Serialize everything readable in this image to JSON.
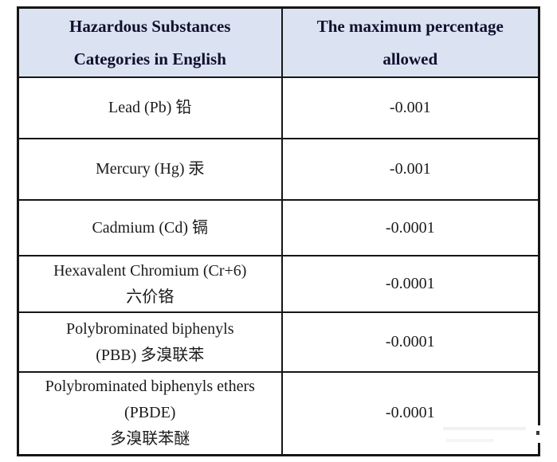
{
  "table": {
    "header": {
      "col1_lines": [
        "Hazardous Substances",
        "Categories in English"
      ],
      "col2_lines": [
        "The maximum percentage",
        "allowed"
      ]
    },
    "rows": [
      {
        "substance_lines": [
          "Lead (Pb) 铅"
        ],
        "value": "-0.001"
      },
      {
        "substance_lines": [
          "Mercury (Hg) 汞"
        ],
        "value": "-0.001"
      },
      {
        "substance_lines": [
          "Cadmium (Cd) 镉"
        ],
        "value": "-0.0001"
      },
      {
        "substance_lines": [
          "Hexavalent Chromium (Cr+6)",
          "六价铬"
        ],
        "value": "-0.0001"
      },
      {
        "substance_lines": [
          "Polybrominated biphenyls",
          "(PBB) 多溴联苯"
        ],
        "value": "-0.0001"
      },
      {
        "substance_lines": [
          "Polybrominated biphenyls ethers",
          "(PBDE)",
          "多溴联苯醚"
        ],
        "value": "-0.0001"
      }
    ],
    "colors": {
      "header_background": "#dbe2f1",
      "header_text": "#10102e",
      "body_text": "#1b1b1b",
      "border": "#161616",
      "page_background": "#ffffff"
    }
  }
}
